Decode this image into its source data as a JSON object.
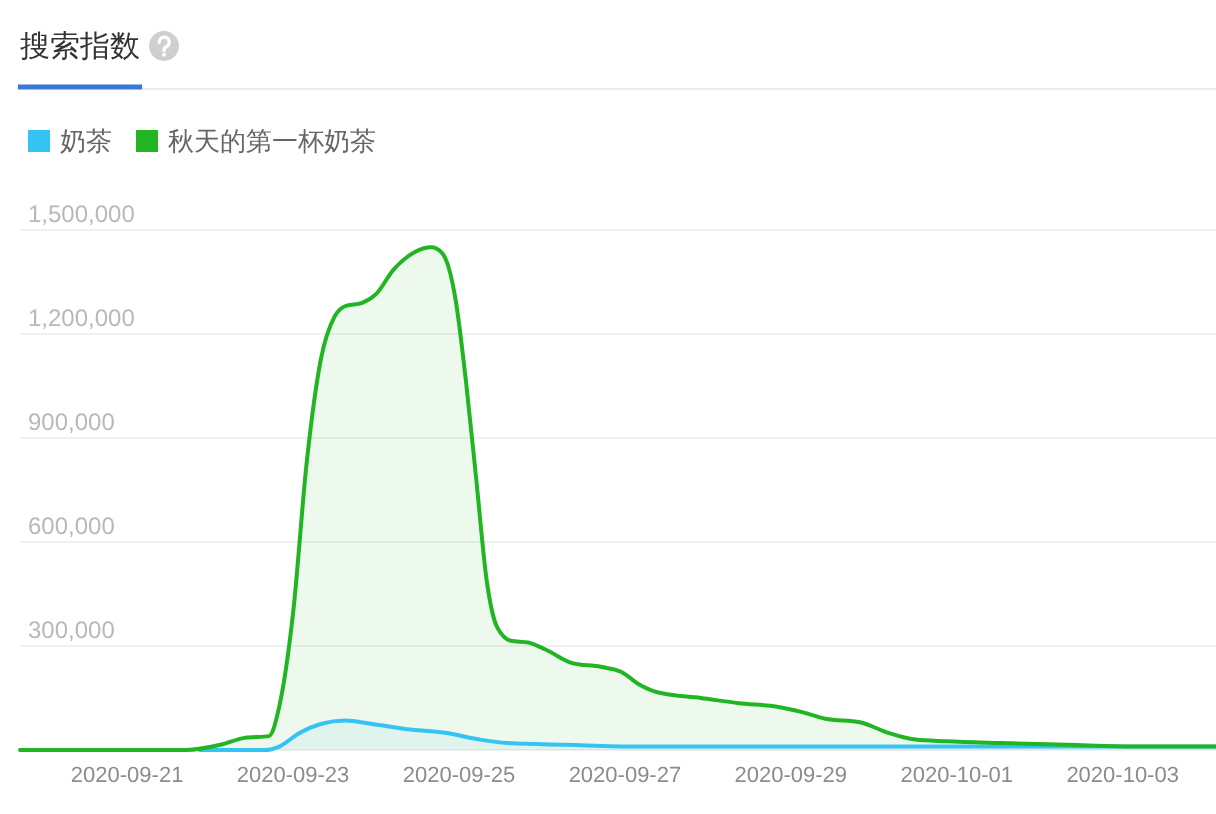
{
  "chart_data": {
    "type": "area",
    "title": "搜索指数",
    "legend": "top left",
    "grid": "y",
    "xlim": [
      "2020-09-19T17:00",
      "2020-10-04T03:00"
    ],
    "xticks": [
      "2020-09-21",
      "2020-09-23",
      "2020-09-25",
      "2020-09-27",
      "2020-09-29",
      "2020-10-01",
      "2020-10-03"
    ],
    "ylim": [
      0,
      1500000
    ],
    "yticks": [
      {
        "value": 0,
        "label": null
      },
      {
        "value": 300000,
        "label": "300,000"
      },
      {
        "value": 600000,
        "label": "600,000"
      },
      {
        "value": 900000,
        "label": "900,000"
      },
      {
        "value": 1200000,
        "label": "1,200,000"
      },
      {
        "value": 1500000,
        "label": "1,500,000"
      }
    ],
    "series": [
      {
        "name": "奶茶",
        "color": "#35c3f3",
        "x": [
          "2020-09-21T21:00",
          "2020-09-22T16:00",
          "2020-09-22T20:00",
          "2020-09-23T02:00",
          "2020-09-23T08:00",
          "2020-09-23T15:00",
          "2020-09-23T23:00",
          "2020-09-24T09:00",
          "2020-09-24T20:00",
          "2020-09-25T06:00",
          "2020-09-25T14:00",
          "2020-09-26T07:00",
          "2020-09-27T04:00",
          "2020-10-04T03:00"
        ],
        "values": [
          0,
          0,
          10000,
          50000,
          75000,
          85000,
          75000,
          60000,
          50000,
          30000,
          20000,
          15000,
          10000,
          10000
        ]
      },
      {
        "name": "秋天的第一杯奶茶",
        "color": "#21b524",
        "x": [
          "2020-09-19T17:00",
          "2020-09-21T17:00",
          "2020-09-22T03:00",
          "2020-09-22T10:00",
          "2020-09-22T17:00",
          "2020-09-22T20:00",
          "2020-09-23T00:00",
          "2020-09-23T04:00",
          "2020-09-23T08:00",
          "2020-09-23T12:00",
          "2020-09-23T15:00",
          "2020-09-23T20:00",
          "2020-09-24T00:00",
          "2020-09-24T05:00",
          "2020-09-24T11:00",
          "2020-09-24T16:00",
          "2020-09-24T19:00",
          "2020-09-24T23:00",
          "2020-09-25T02:00",
          "2020-09-25T05:00",
          "2020-09-25T08:00",
          "2020-09-25T11:00",
          "2020-09-25T15:00",
          "2020-09-25T20:00",
          "2020-09-26T01:00",
          "2020-09-26T09:00",
          "2020-09-26T17:00",
          "2020-09-26T23:00",
          "2020-09-27T04:00",
          "2020-09-27T10:00",
          "2020-09-27T22:00",
          "2020-09-28T09:00",
          "2020-09-28T20:00",
          "2020-09-29T03:00",
          "2020-09-29T10:00",
          "2020-09-29T20:00",
          "2020-09-30T04:00",
          "2020-09-30T12:00",
          "2020-09-30T21:00",
          "2020-10-01T13:00",
          "2020-10-02T08:00",
          "2020-10-03T03:00",
          "2020-10-04T03:00"
        ],
        "values": [
          0,
          0,
          15000,
          35000,
          40000,
          125000,
          395000,
          835000,
          1125000,
          1250000,
          1280000,
          1290000,
          1315000,
          1385000,
          1435000,
          1450000,
          1435000,
          1300000,
          1065000,
          780000,
          490000,
          355000,
          315000,
          310000,
          290000,
          250000,
          240000,
          225000,
          190000,
          165000,
          150000,
          135000,
          125000,
          110000,
          90000,
          80000,
          50000,
          30000,
          25000,
          20000,
          15000,
          10000,
          10000
        ]
      }
    ]
  }
}
